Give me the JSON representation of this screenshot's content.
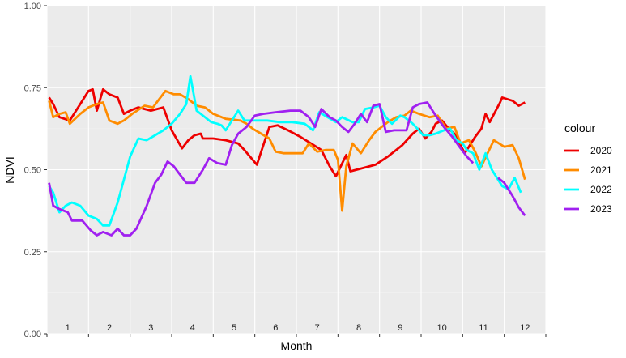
{
  "chart_data": {
    "type": "line",
    "xlabel": "Month",
    "ylabel": "NDVI",
    "ylim": [
      0,
      1
    ],
    "xlim": [
      1,
      13
    ],
    "yticks": [
      "0.00",
      "0.25",
      "0.50",
      "0.75",
      "1.00"
    ],
    "month_labels": [
      "1",
      "2",
      "3",
      "4",
      "5",
      "6",
      "7",
      "8",
      "9",
      "10",
      "11",
      "12"
    ],
    "grid": true,
    "legend_title": "colour",
    "legend_position": "right",
    "series": [
      {
        "name": "2020",
        "color": "#ee0000",
        "points": [
          [
            1.05,
            0.72
          ],
          [
            1.15,
            0.7
          ],
          [
            1.3,
            0.66
          ],
          [
            1.55,
            0.65
          ],
          [
            1.8,
            0.7
          ],
          [
            2.0,
            0.74
          ],
          [
            2.1,
            0.745
          ],
          [
            2.2,
            0.68
          ],
          [
            2.35,
            0.745
          ],
          [
            2.5,
            0.73
          ],
          [
            2.7,
            0.72
          ],
          [
            2.85,
            0.67
          ],
          [
            3.0,
            0.68
          ],
          [
            3.2,
            0.69
          ],
          [
            3.5,
            0.68
          ],
          [
            3.8,
            0.69
          ],
          [
            4.0,
            0.62
          ],
          [
            4.25,
            0.565
          ],
          [
            4.4,
            0.59
          ],
          [
            4.55,
            0.605
          ],
          [
            4.7,
            0.61
          ],
          [
            4.75,
            0.595
          ],
          [
            5.0,
            0.595
          ],
          [
            5.3,
            0.59
          ],
          [
            5.6,
            0.58
          ],
          [
            5.75,
            0.56
          ],
          [
            6.05,
            0.515
          ],
          [
            6.35,
            0.63
          ],
          [
            6.55,
            0.635
          ],
          [
            6.8,
            0.62
          ],
          [
            7.1,
            0.6
          ],
          [
            7.35,
            0.58
          ],
          [
            7.6,
            0.56
          ],
          [
            7.8,
            0.51
          ],
          [
            7.95,
            0.48
          ],
          [
            8.2,
            0.545
          ],
          [
            8.3,
            0.495
          ],
          [
            8.6,
            0.505
          ],
          [
            8.9,
            0.515
          ],
          [
            9.2,
            0.54
          ],
          [
            9.55,
            0.575
          ],
          [
            9.8,
            0.61
          ],
          [
            9.95,
            0.625
          ],
          [
            10.1,
            0.595
          ],
          [
            10.25,
            0.615
          ],
          [
            10.35,
            0.64
          ],
          [
            10.5,
            0.65
          ],
          [
            10.7,
            0.62
          ],
          [
            10.8,
            0.61
          ],
          [
            11.05,
            0.55
          ],
          [
            11.3,
            0.6
          ],
          [
            11.45,
            0.625
          ],
          [
            11.55,
            0.67
          ],
          [
            11.65,
            0.645
          ],
          [
            11.9,
            0.705
          ],
          [
            11.95,
            0.72
          ],
          [
            12.2,
            0.71
          ],
          [
            12.35,
            0.695
          ],
          [
            12.5,
            0.705
          ]
        ]
      },
      {
        "name": "2021",
        "color": "#ff8c00",
        "points": [
          [
            1.05,
            0.71
          ],
          [
            1.15,
            0.66
          ],
          [
            1.3,
            0.67
          ],
          [
            1.45,
            0.675
          ],
          [
            1.55,
            0.64
          ],
          [
            1.8,
            0.67
          ],
          [
            2.0,
            0.69
          ],
          [
            2.2,
            0.7
          ],
          [
            2.35,
            0.705
          ],
          [
            2.5,
            0.65
          ],
          [
            2.7,
            0.64
          ],
          [
            2.85,
            0.65
          ],
          [
            3.05,
            0.67
          ],
          [
            3.35,
            0.695
          ],
          [
            3.55,
            0.69
          ],
          [
            3.7,
            0.715
          ],
          [
            3.85,
            0.74
          ],
          [
            4.05,
            0.73
          ],
          [
            4.2,
            0.73
          ],
          [
            4.4,
            0.715
          ],
          [
            4.6,
            0.695
          ],
          [
            4.8,
            0.69
          ],
          [
            5.0,
            0.67
          ],
          [
            5.3,
            0.655
          ],
          [
            5.65,
            0.65
          ],
          [
            5.8,
            0.64
          ],
          [
            5.95,
            0.625
          ],
          [
            6.15,
            0.61
          ],
          [
            6.35,
            0.595
          ],
          [
            6.5,
            0.555
          ],
          [
            6.7,
            0.55
          ],
          [
            6.85,
            0.55
          ],
          [
            7.0,
            0.55
          ],
          [
            7.15,
            0.55
          ],
          [
            7.3,
            0.58
          ],
          [
            7.5,
            0.555
          ],
          [
            7.7,
            0.56
          ],
          [
            7.9,
            0.56
          ],
          [
            8.0,
            0.53
          ],
          [
            8.1,
            0.375
          ],
          [
            8.2,
            0.51
          ],
          [
            8.35,
            0.58
          ],
          [
            8.55,
            0.55
          ],
          [
            8.75,
            0.59
          ],
          [
            8.9,
            0.615
          ],
          [
            9.05,
            0.63
          ],
          [
            9.2,
            0.645
          ],
          [
            9.4,
            0.66
          ],
          [
            9.6,
            0.665
          ],
          [
            9.75,
            0.68
          ],
          [
            9.95,
            0.67
          ],
          [
            10.2,
            0.66
          ],
          [
            10.4,
            0.665
          ],
          [
            10.6,
            0.625
          ],
          [
            10.8,
            0.63
          ],
          [
            10.95,
            0.58
          ],
          [
            11.15,
            0.59
          ],
          [
            11.3,
            0.555
          ],
          [
            11.45,
            0.51
          ],
          [
            11.6,
            0.55
          ],
          [
            11.75,
            0.59
          ],
          [
            12.0,
            0.57
          ],
          [
            12.2,
            0.575
          ],
          [
            12.35,
            0.535
          ],
          [
            12.5,
            0.47
          ]
        ]
      },
      {
        "name": "2022",
        "color": "#00ffff",
        "points": [
          [
            1.05,
            0.45
          ],
          [
            1.15,
            0.43
          ],
          [
            1.3,
            0.37
          ],
          [
            1.45,
            0.39
          ],
          [
            1.6,
            0.4
          ],
          [
            1.8,
            0.39
          ],
          [
            2.0,
            0.36
          ],
          [
            2.2,
            0.35
          ],
          [
            2.35,
            0.33
          ],
          [
            2.5,
            0.33
          ],
          [
            2.7,
            0.4
          ],
          [
            2.85,
            0.47
          ],
          [
            3.0,
            0.54
          ],
          [
            3.2,
            0.595
          ],
          [
            3.4,
            0.59
          ],
          [
            3.6,
            0.605
          ],
          [
            3.8,
            0.62
          ],
          [
            4.0,
            0.64
          ],
          [
            4.2,
            0.67
          ],
          [
            4.35,
            0.7
          ],
          [
            4.45,
            0.785
          ],
          [
            4.6,
            0.68
          ],
          [
            4.8,
            0.66
          ],
          [
            4.95,
            0.645
          ],
          [
            5.1,
            0.64
          ],
          [
            5.2,
            0.635
          ],
          [
            5.3,
            0.62
          ],
          [
            5.45,
            0.65
          ],
          [
            5.6,
            0.68
          ],
          [
            5.75,
            0.65
          ],
          [
            6.0,
            0.65
          ],
          [
            6.3,
            0.65
          ],
          [
            6.6,
            0.645
          ],
          [
            6.9,
            0.645
          ],
          [
            7.2,
            0.64
          ],
          [
            7.4,
            0.62
          ],
          [
            7.55,
            0.675
          ],
          [
            7.75,
            0.66
          ],
          [
            7.95,
            0.645
          ],
          [
            8.1,
            0.66
          ],
          [
            8.35,
            0.645
          ],
          [
            8.5,
            0.645
          ],
          [
            8.65,
            0.685
          ],
          [
            8.85,
            0.69
          ],
          [
            9.0,
            0.695
          ],
          [
            9.15,
            0.66
          ],
          [
            9.3,
            0.64
          ],
          [
            9.5,
            0.665
          ],
          [
            9.6,
            0.66
          ],
          [
            9.8,
            0.64
          ],
          [
            9.95,
            0.62
          ],
          [
            10.05,
            0.605
          ],
          [
            10.2,
            0.605
          ],
          [
            10.35,
            0.61
          ],
          [
            10.55,
            0.62
          ],
          [
            10.7,
            0.625
          ],
          [
            10.85,
            0.59
          ],
          [
            11.0,
            0.58
          ],
          [
            11.1,
            0.56
          ],
          [
            11.25,
            0.55
          ],
          [
            11.4,
            0.5
          ],
          [
            11.55,
            0.55
          ],
          [
            11.7,
            0.5
          ],
          [
            11.85,
            0.47
          ],
          [
            11.95,
            0.45
          ],
          [
            12.1,
            0.44
          ],
          [
            12.25,
            0.475
          ],
          [
            12.4,
            0.43
          ]
        ]
      },
      {
        "name": "2023",
        "color": "#a020f0",
        "segments": [
          [
            [
              1.05,
              0.46
            ],
            [
              1.15,
              0.39
            ],
            [
              1.3,
              0.38
            ],
            [
              1.5,
              0.37
            ],
            [
              1.6,
              0.345
            ],
            [
              1.85,
              0.345
            ],
            [
              2.05,
              0.315
            ],
            [
              2.2,
              0.3
            ],
            [
              2.35,
              0.31
            ],
            [
              2.55,
              0.3
            ],
            [
              2.7,
              0.32
            ],
            [
              2.85,
              0.3
            ],
            [
              3.0,
              0.3
            ],
            [
              3.15,
              0.32
            ],
            [
              3.4,
              0.39
            ],
            [
              3.6,
              0.46
            ],
            [
              3.75,
              0.485
            ],
            [
              3.9,
              0.525
            ],
            [
              4.05,
              0.51
            ],
            [
              4.2,
              0.485
            ],
            [
              4.35,
              0.46
            ],
            [
              4.55,
              0.46
            ],
            [
              4.75,
              0.5
            ],
            [
              4.9,
              0.535
            ],
            [
              5.1,
              0.52
            ],
            [
              5.3,
              0.515
            ],
            [
              5.45,
              0.575
            ],
            [
              5.6,
              0.61
            ],
            [
              5.8,
              0.63
            ],
            [
              6.0,
              0.665
            ],
            [
              6.2,
              0.67
            ],
            [
              6.5,
              0.675
            ],
            [
              6.85,
              0.68
            ],
            [
              7.1,
              0.68
            ],
            [
              7.3,
              0.66
            ],
            [
              7.45,
              0.63
            ],
            [
              7.6,
              0.685
            ],
            [
              7.8,
              0.66
            ],
            [
              7.95,
              0.65
            ],
            [
              8.1,
              0.63
            ],
            [
              8.25,
              0.615
            ],
            [
              8.4,
              0.64
            ],
            [
              8.55,
              0.67
            ],
            [
              8.7,
              0.645
            ],
            [
              8.85,
              0.695
            ],
            [
              9.0,
              0.7
            ],
            [
              9.15,
              0.615
            ],
            [
              9.35,
              0.62
            ],
            [
              9.5,
              0.62
            ],
            [
              9.65,
              0.62
            ],
            [
              9.8,
              0.69
            ],
            [
              9.95,
              0.7
            ],
            [
              10.15,
              0.705
            ],
            [
              10.35,
              0.665
            ],
            [
              10.55,
              0.63
            ],
            [
              10.75,
              0.6
            ],
            [
              10.95,
              0.565
            ],
            [
              11.1,
              0.54
            ],
            [
              11.25,
              0.52
            ]
          ],
          [
            [
              11.85,
              0.475
            ],
            [
              12.0,
              0.46
            ],
            [
              12.2,
              0.42
            ],
            [
              12.35,
              0.385
            ],
            [
              12.5,
              0.36
            ]
          ]
        ]
      }
    ]
  }
}
